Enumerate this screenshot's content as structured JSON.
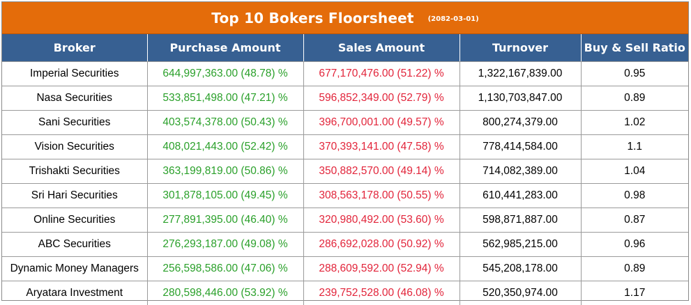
{
  "title": "Top 10 Bokers Floorsheet",
  "date": "(2082-03-01)",
  "columns": [
    "Broker",
    "Purchase Amount",
    "Sales Amount",
    "Turnover",
    "Buy & Sell Ratio"
  ],
  "rows": [
    {
      "broker": "Imperial Securities",
      "purchase": "644,997,363.00 (48.78) %",
      "sales": "677,170,476.00 (51.22) %",
      "turnover": "1,322,167,839.00",
      "ratio": "0.95"
    },
    {
      "broker": "Nasa Securities",
      "purchase": "533,851,498.00 (47.21) %",
      "sales": "596,852,349.00 (52.79) %",
      "turnover": "1,130,703,847.00",
      "ratio": "0.89"
    },
    {
      "broker": "Sani Securities",
      "purchase": "403,574,378.00 (50.43) %",
      "sales": "396,700,001.00 (49.57) %",
      "turnover": "800,274,379.00",
      "ratio": "1.02"
    },
    {
      "broker": "Vision Securities",
      "purchase": "408,021,443.00 (52.42) %",
      "sales": "370,393,141.00 (47.58) %",
      "turnover": "778,414,584.00",
      "ratio": "1.1"
    },
    {
      "broker": "Trishakti Securities",
      "purchase": "363,199,819.00 (50.86) %",
      "sales": "350,882,570.00 (49.14) %",
      "turnover": "714,082,389.00",
      "ratio": "1.04"
    },
    {
      "broker": "Sri Hari Securities",
      "purchase": "301,878,105.00 (49.45) %",
      "sales": "308,563,178.00 (50.55) %",
      "turnover": "610,441,283.00",
      "ratio": "0.98"
    },
    {
      "broker": "Online Securities",
      "purchase": "277,891,395.00 (46.40) %",
      "sales": "320,980,492.00 (53.60) %",
      "turnover": "598,871,887.00",
      "ratio": "0.87"
    },
    {
      "broker": "ABC Securities",
      "purchase": "276,293,187.00 (49.08) %",
      "sales": "286,692,028.00 (50.92) %",
      "turnover": "562,985,215.00",
      "ratio": "0.96"
    },
    {
      "broker": "Dynamic Money Managers",
      "purchase": "256,598,586.00 (47.06) %",
      "sales": "288,609,592.00 (52.94) %",
      "turnover": "545,208,178.00",
      "ratio": "0.89"
    },
    {
      "broker": "Aryatara Investment",
      "purchase": "280,598,446.00 (53.92) %",
      "sales": "239,752,528.00 (46.08) %",
      "turnover": "520,350,974.00",
      "ratio": "1.17"
    }
  ],
  "colors": {
    "title_bg": "#e46c0a",
    "header_bg": "#376092",
    "purchase_text": "#2aa02a",
    "sales_text": "#e2243a"
  }
}
